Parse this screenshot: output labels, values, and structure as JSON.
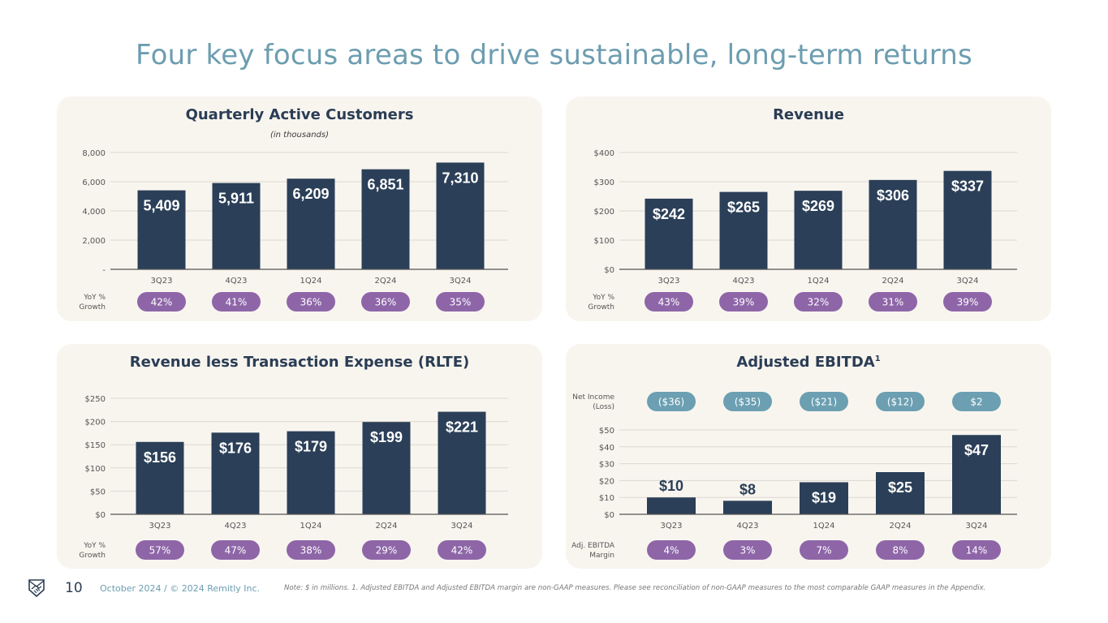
{
  "page": {
    "title": "Four key focus areas to drive sustainable, long-term returns",
    "page_number": "10",
    "copyright": "October 2024 / © 2024 Remitly Inc.",
    "note": "Note: $ in millions. 1. Adjusted EBITDA and Adjusted EBITDA margin are non-GAAP measures. Please see reconciliation of non-GAAP measures to the most comparable GAAP measures in the Appendix.",
    "logo_icon": "shield-handshake-icon"
  },
  "colors": {
    "bar": "#2b3f58",
    "pill_purple": "#8e66a8",
    "pill_teal": "#6b9fb1",
    "title": "#6c9db0",
    "panel_bg": "#f8f5ef"
  },
  "chart_data": [
    {
      "type": "bar",
      "title": "Quarterly Active Customers",
      "subtitle": "(in thousands)",
      "categories": [
        "3Q23",
        "4Q23",
        "1Q24",
        "2Q24",
        "3Q24"
      ],
      "values": [
        5409,
        5911,
        6209,
        6851,
        7310
      ],
      "value_labels": [
        "5,409",
        "5,911",
        "6,209",
        "6,851",
        "7,310"
      ],
      "yticks": [
        "-",
        "2,000",
        "4,000",
        "6,000",
        "8,000"
      ],
      "ylim": [
        0,
        8000
      ],
      "grid": true,
      "row_label": "YoY % Growth",
      "row_values": [
        "42%",
        "41%",
        "36%",
        "36%",
        "35%"
      ]
    },
    {
      "type": "bar",
      "title": "Revenue",
      "categories": [
        "3Q23",
        "4Q23",
        "1Q24",
        "2Q24",
        "3Q24"
      ],
      "values": [
        242,
        265,
        269,
        306,
        337
      ],
      "value_labels": [
        "$242",
        "$265",
        "$269",
        "$306",
        "$337"
      ],
      "yticks": [
        "$0",
        "$100",
        "$200",
        "$300",
        "$400"
      ],
      "ylim": [
        0,
        400
      ],
      "grid": true,
      "row_label": "YoY % Growth",
      "row_values": [
        "43%",
        "39%",
        "32%",
        "31%",
        "39%"
      ]
    },
    {
      "type": "bar",
      "title": "Revenue less Transaction Expense (RLTE)",
      "categories": [
        "3Q23",
        "4Q23",
        "1Q24",
        "2Q24",
        "3Q24"
      ],
      "values": [
        156,
        176,
        179,
        199,
        221
      ],
      "value_labels": [
        "$156",
        "$176",
        "$179",
        "$199",
        "$221"
      ],
      "yticks": [
        "$0",
        "$50",
        "$100",
        "$150",
        "$200",
        "$250"
      ],
      "ylim": [
        0,
        250
      ],
      "grid": true,
      "row_label": "YoY % Growth",
      "row_values": [
        "57%",
        "47%",
        "38%",
        "29%",
        "42%"
      ]
    },
    {
      "type": "bar",
      "title": "Adjusted EBITDA",
      "title_sup": "1",
      "categories": [
        "3Q23",
        "4Q23",
        "1Q24",
        "2Q24",
        "3Q24"
      ],
      "values": [
        10,
        8,
        19,
        25,
        47
      ],
      "value_labels": [
        "$10",
        "$8",
        "$19",
        "$25",
        "$47"
      ],
      "yticks": [
        "$0",
        "$10",
        "$20",
        "$30",
        "$40",
        "$50"
      ],
      "ylim": [
        0,
        50
      ],
      "grid": true,
      "top_row_label": "Net Income (Loss)",
      "top_row_values": [
        "($36)",
        "($35)",
        "($21)",
        "($12)",
        "$2"
      ],
      "row_label": "Adj. EBITDA Margin",
      "row_values": [
        "4%",
        "3%",
        "7%",
        "8%",
        "14%"
      ]
    }
  ]
}
